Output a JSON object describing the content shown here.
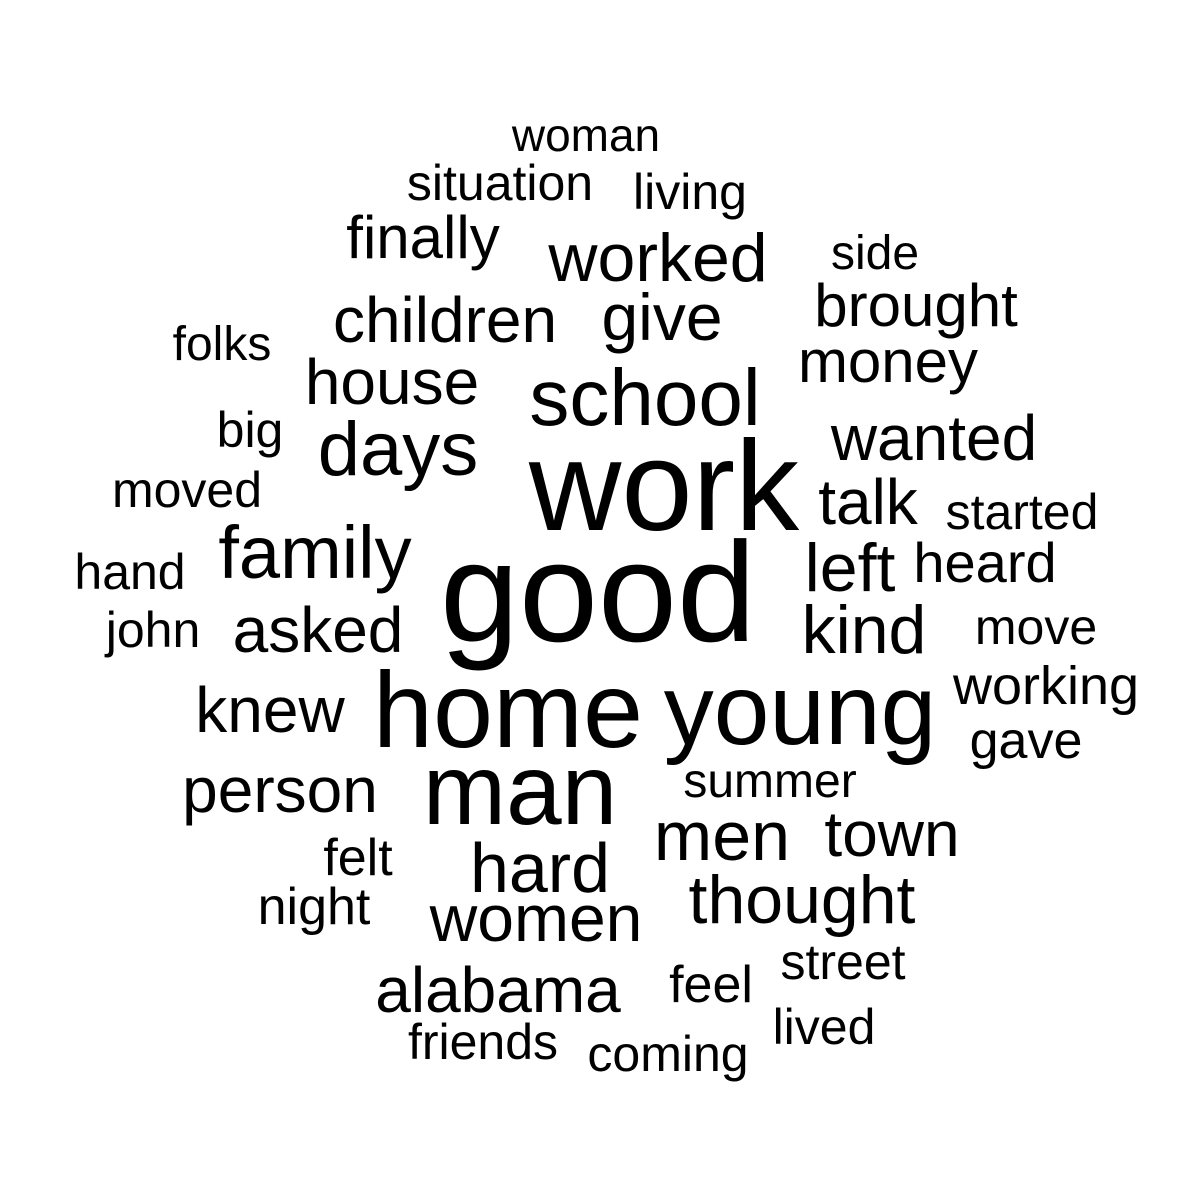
{
  "words": [
    "woman",
    "situation",
    "living",
    "finally",
    "worked",
    "side",
    "children",
    "give",
    "brought",
    "folks",
    "house",
    "money",
    "school",
    "big",
    "days",
    "wanted",
    "moved",
    "work",
    "talk",
    "started",
    "family",
    "left",
    "heard",
    "hand",
    "good",
    "john",
    "asked",
    "kind",
    "move",
    "working",
    "knew",
    "home",
    "young",
    "gave",
    "person",
    "man",
    "summer",
    "men",
    "town",
    "felt",
    "hard",
    "night",
    "women",
    "thought",
    "street",
    "alabama",
    "feel",
    "lived",
    "friends",
    "coming"
  ],
  "colors": {
    "background": "#ffffff",
    "text": "#000000"
  }
}
